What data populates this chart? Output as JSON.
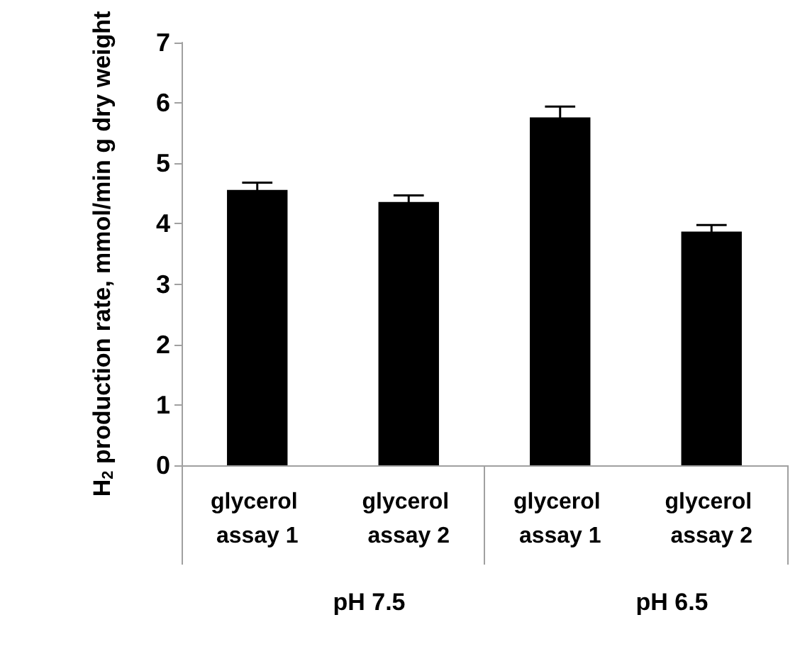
{
  "chart_data": {
    "type": "bar",
    "ylabel": "H$_{2}$ production rate, mmol/min g dry weight",
    "categories": [
      "glycerol assay 1",
      "glycerol assay 2",
      "glycerol assay 1",
      "glycerol assay 2"
    ],
    "values": [
      4.56,
      4.36,
      5.76,
      3.87
    ],
    "errors": [
      0.12,
      0.11,
      0.18,
      0.11
    ],
    "color": "#000000",
    "annotations": [
      "pH 7.5",
      "pH 6.5"
    ],
    "ylim": [
      0,
      7
    ],
    "yticks": [
      0,
      1,
      2,
      3,
      4,
      5,
      6,
      7
    ],
    "grid": false
  }
}
